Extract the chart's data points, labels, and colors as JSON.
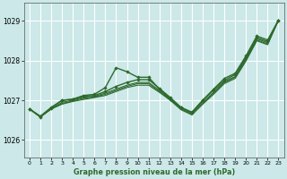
{
  "title": "Graphe pression niveau de la mer (hPa)",
  "bg_color": "#cce8e8",
  "grid_color": "#ffffff",
  "line_color": "#2d6a2d",
  "xlim": [
    -0.5,
    23.5
  ],
  "ylim": [
    1025.55,
    1029.45
  ],
  "yticks": [
    1026,
    1027,
    1028,
    1029
  ],
  "xticks": [
    0,
    1,
    2,
    3,
    4,
    5,
    6,
    7,
    8,
    9,
    10,
    11,
    12,
    13,
    14,
    15,
    16,
    17,
    18,
    19,
    20,
    21,
    22,
    23
  ],
  "series": [
    {
      "y": [
        1026.78,
        1026.6,
        1026.82,
        1027.0,
        1027.03,
        1027.12,
        1027.15,
        1027.32,
        1027.82,
        1027.72,
        1027.58,
        1027.58,
        1027.28,
        1027.02,
        1026.82,
        1026.68,
        1027.0,
        1027.28,
        1027.55,
        1027.68,
        1028.12,
        1028.62,
        1028.52,
        1029.02
      ],
      "marker": true,
      "lw": 1.0
    },
    {
      "y": [
        1026.78,
        1026.58,
        1026.8,
        1027.0,
        1027.02,
        1027.1,
        1027.12,
        1027.22,
        1027.35,
        1027.45,
        1027.52,
        1027.52,
        1027.3,
        1027.07,
        1026.82,
        1026.7,
        1027.0,
        1027.25,
        1027.5,
        1027.65,
        1028.08,
        1028.58,
        1028.48,
        1029.02
      ],
      "marker": true,
      "lw": 1.0
    },
    {
      "y": [
        1026.78,
        1026.58,
        1026.78,
        1026.95,
        1027.0,
        1027.08,
        1027.1,
        1027.18,
        1027.28,
        1027.38,
        1027.45,
        1027.45,
        1027.25,
        1027.05,
        1026.8,
        1026.68,
        1026.95,
        1027.2,
        1027.47,
        1027.6,
        1028.05,
        1028.55,
        1028.45,
        1029.02
      ],
      "marker": false,
      "lw": 0.8
    },
    {
      "y": [
        1026.78,
        1026.58,
        1026.78,
        1026.92,
        1026.98,
        1027.05,
        1027.08,
        1027.15,
        1027.25,
        1027.35,
        1027.42,
        1027.42,
        1027.22,
        1027.02,
        1026.78,
        1026.65,
        1026.92,
        1027.17,
        1027.45,
        1027.58,
        1028.02,
        1028.52,
        1028.42,
        1029.02
      ],
      "marker": false,
      "lw": 0.8
    },
    {
      "y": [
        1026.78,
        1026.58,
        1026.78,
        1026.9,
        1026.97,
        1027.02,
        1027.07,
        1027.12,
        1027.22,
        1027.32,
        1027.38,
        1027.38,
        1027.2,
        1027.0,
        1026.76,
        1026.63,
        1026.9,
        1027.15,
        1027.42,
        1027.55,
        1027.99,
        1028.5,
        1028.4,
        1029.02
      ],
      "marker": false,
      "lw": 0.8
    }
  ]
}
